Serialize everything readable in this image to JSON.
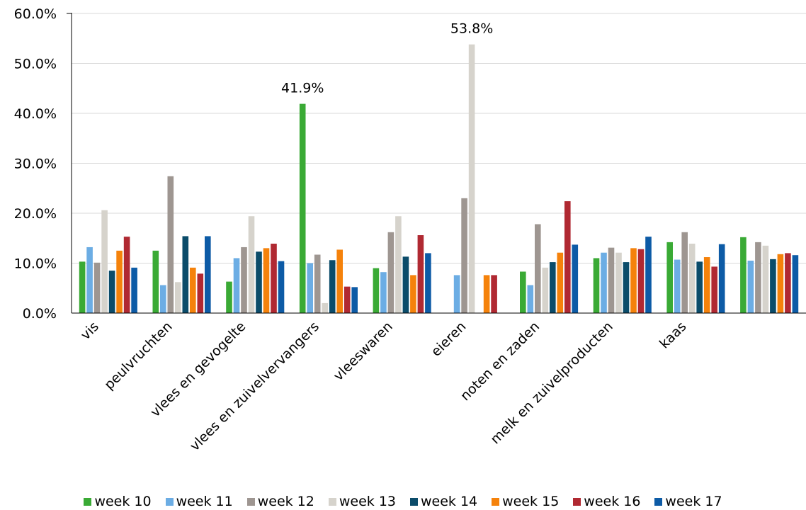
{
  "chart_data": {
    "type": "bar",
    "title": "",
    "xlabel": "",
    "ylabel": "",
    "ylim": [
      0,
      60
    ],
    "yticks": [
      0,
      10,
      20,
      30,
      40,
      50,
      60
    ],
    "ytick_labels": [
      "0.0%",
      "10.0%",
      "20.0%",
      "30.0%",
      "40.0%",
      "50.0%",
      "60.0%"
    ],
    "grid": true,
    "legend_position": "bottom",
    "categories": [
      "vis",
      "peulvruchten",
      "vlees en gevogelte",
      "vlees en zuivelvervangers",
      "vleeswaren",
      "eieren",
      "noten en zaden",
      "melk en zuivelproducten",
      "kaas",
      ""
    ],
    "series": [
      {
        "name": "week 10",
        "color": "#3aaa35",
        "values": [
          10.3,
          12.5,
          6.3,
          41.9,
          9.0,
          0,
          8.3,
          11.0,
          14.2,
          15.2
        ]
      },
      {
        "name": "week 11",
        "color": "#6cade4",
        "values": [
          13.2,
          5.6,
          11.0,
          10.0,
          8.2,
          7.6,
          5.6,
          12.1,
          10.7,
          10.5
        ]
      },
      {
        "name": "week 12",
        "color": "#9e9691",
        "values": [
          10.1,
          27.4,
          13.2,
          11.7,
          16.2,
          23.0,
          17.8,
          13.1,
          16.2,
          14.2
        ]
      },
      {
        "name": "week 13",
        "color": "#d6d3cc",
        "values": [
          20.6,
          6.2,
          19.4,
          2.0,
          19.4,
          53.8,
          9.1,
          12.1,
          13.9,
          13.5
        ]
      },
      {
        "name": "week 14",
        "color": "#0b4c6a",
        "values": [
          8.5,
          15.4,
          12.3,
          10.6,
          11.3,
          0,
          10.2,
          10.2,
          10.3,
          10.8
        ]
      },
      {
        "name": "week 15",
        "color": "#f5820b",
        "values": [
          12.5,
          9.1,
          13.0,
          12.7,
          7.6,
          7.6,
          12.1,
          13.0,
          11.2,
          11.8
        ]
      },
      {
        "name": "week 16",
        "color": "#b02932",
        "values": [
          15.3,
          7.9,
          13.9,
          5.3,
          15.6,
          7.6,
          22.4,
          12.8,
          9.3,
          12.0
        ]
      },
      {
        "name": "week 17",
        "color": "#0d5ba6",
        "values": [
          9.1,
          15.4,
          10.4,
          5.2,
          12.0,
          0,
          13.7,
          15.3,
          13.8,
          11.6
        ]
      }
    ],
    "annotations": [
      {
        "text": "41.9%",
        "category_index": 3,
        "series_index": 0,
        "value": 41.9
      },
      {
        "text": "53.8%",
        "category_index": 5,
        "series_index": 3,
        "value": 53.8
      }
    ]
  }
}
